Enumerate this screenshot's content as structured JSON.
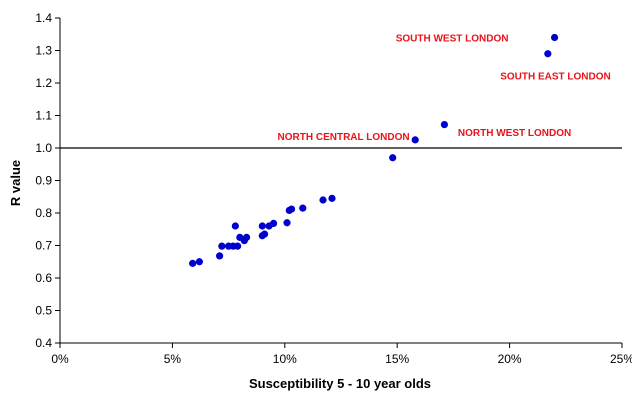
{
  "chart_data": {
    "type": "scatter",
    "title": "",
    "xlabel": "Susceptibility 5 - 10 year olds",
    "ylabel": "R value",
    "xlim": [
      0,
      0.25
    ],
    "ylim": [
      0.4,
      1.4
    ],
    "x_ticks": [
      0,
      0.05,
      0.1,
      0.15,
      0.2,
      0.25
    ],
    "x_tick_labels": [
      "0%",
      "5%",
      "10%",
      "15%",
      "20%",
      "25%"
    ],
    "y_ticks": [
      0.4,
      0.5,
      0.6,
      0.7,
      0.8,
      0.9,
      1.0,
      1.1,
      1.2,
      1.3,
      1.4
    ],
    "y_tick_labels": [
      "0.4",
      "0.5",
      "0.6",
      "0.7",
      "0.8",
      "0.9",
      "1.0",
      "1.1",
      "1.2",
      "1.3",
      "1.4"
    ],
    "reference_line_y": 1.0,
    "grid": false,
    "marker_color": "#0000cc",
    "annotation_color": "#e8141b",
    "points": [
      {
        "x": 0.059,
        "y": 0.645
      },
      {
        "x": 0.062,
        "y": 0.65
      },
      {
        "x": 0.071,
        "y": 0.668
      },
      {
        "x": 0.072,
        "y": 0.698
      },
      {
        "x": 0.075,
        "y": 0.698
      },
      {
        "x": 0.077,
        "y": 0.698
      },
      {
        "x": 0.078,
        "y": 0.76
      },
      {
        "x": 0.079,
        "y": 0.698
      },
      {
        "x": 0.08,
        "y": 0.725
      },
      {
        "x": 0.082,
        "y": 0.715
      },
      {
        "x": 0.083,
        "y": 0.725
      },
      {
        "x": 0.09,
        "y": 0.73
      },
      {
        "x": 0.09,
        "y": 0.76
      },
      {
        "x": 0.091,
        "y": 0.735
      },
      {
        "x": 0.093,
        "y": 0.76
      },
      {
        "x": 0.095,
        "y": 0.768
      },
      {
        "x": 0.101,
        "y": 0.77
      },
      {
        "x": 0.102,
        "y": 0.808
      },
      {
        "x": 0.103,
        "y": 0.812
      },
      {
        "x": 0.108,
        "y": 0.815
      },
      {
        "x": 0.117,
        "y": 0.84
      },
      {
        "x": 0.121,
        "y": 0.845
      },
      {
        "x": 0.148,
        "y": 0.97
      },
      {
        "x": 0.158,
        "y": 1.025
      },
      {
        "x": 0.171,
        "y": 1.072
      },
      {
        "x": 0.217,
        "y": 1.29
      },
      {
        "x": 0.22,
        "y": 1.34
      }
    ],
    "annotations": [
      {
        "text": "SOUTH WEST LONDON",
        "x": 0.1995,
        "y": 1.339,
        "anchor": "end"
      },
      {
        "text": "SOUTH EAST LONDON",
        "x": 0.245,
        "y": 1.221,
        "anchor": "end"
      },
      {
        "text": "NORTH CENTRAL LONDON",
        "x": 0.1555,
        "y": 1.035,
        "anchor": "end"
      },
      {
        "text": "NORTH WEST LONDON",
        "x": 0.177,
        "y": 1.047,
        "anchor": "start"
      }
    ]
  }
}
